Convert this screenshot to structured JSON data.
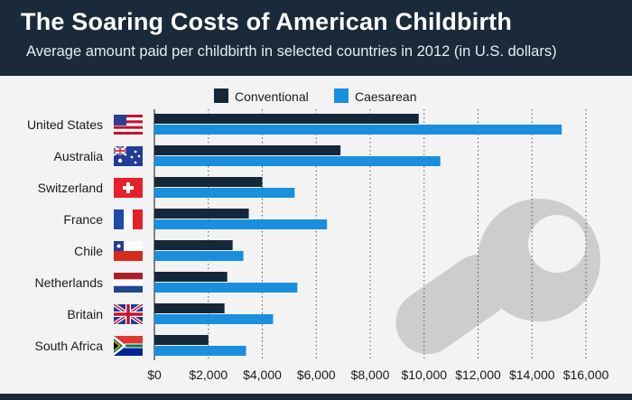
{
  "header": {
    "title": "The Soaring Costs of American Childbirth",
    "subtitle": "Average amount paid per childbirth in selected countries in 2012 (in U.S. dollars)"
  },
  "colors": {
    "header_bg": "#1b2a3a",
    "conventional": "#14283a",
    "caesarean": "#1a8fde",
    "pacifier": "#cdcdcd"
  },
  "chart_data": {
    "type": "bar",
    "orientation": "horizontal",
    "title": "The Soaring Costs of American Childbirth",
    "subtitle": "Average amount paid per childbirth in selected countries in 2012 (in U.S. dollars)",
    "categories": [
      "United States",
      "Australia",
      "Switzerland",
      "France",
      "Chile",
      "Netherlands",
      "Britain",
      "South Africa"
    ],
    "series": [
      {
        "name": "Conventional",
        "values": [
          9800,
          6900,
          4000,
          3500,
          2900,
          2700,
          2600,
          2000
        ]
      },
      {
        "name": "Caesarean",
        "values": [
          15100,
          10600,
          5200,
          6400,
          3300,
          5300,
          4400,
          3400
        ]
      }
    ],
    "xlim": [
      0,
      16000
    ],
    "xticks": [
      0,
      2000,
      4000,
      6000,
      8000,
      10000,
      12000,
      14000,
      16000
    ],
    "xtick_labels": [
      "$0",
      "$2,000",
      "$4,000",
      "$6,000",
      "$8,000",
      "$10,000",
      "$12,000",
      "$14,000",
      "$16,000"
    ],
    "legend_position": "top",
    "grid": "vertical dotted",
    "flags": [
      "us-flag-icon",
      "australia-flag-icon",
      "switzerland-flag-icon",
      "france-flag-icon",
      "chile-flag-icon",
      "netherlands-flag-icon",
      "britain-flag-icon",
      "south-africa-flag-icon"
    ],
    "decoration": "pacifier-icon"
  }
}
